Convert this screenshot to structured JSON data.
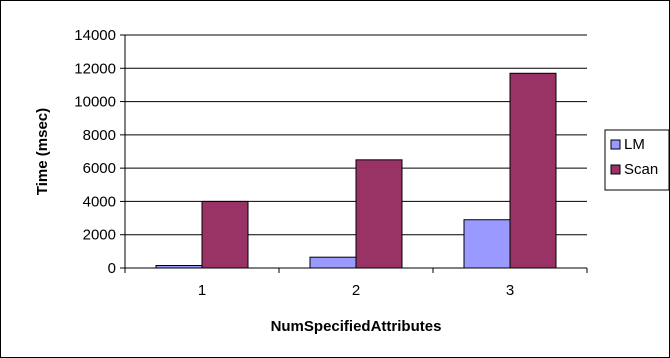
{
  "chart_data": {
    "type": "bar",
    "categories": [
      "1",
      "2",
      "3"
    ],
    "series": [
      {
        "name": "LM",
        "values": [
          150,
          650,
          2900
        ],
        "color": "#9999ff"
      },
      {
        "name": "Scan",
        "values": [
          4000,
          6500,
          11700
        ],
        "color": "#993366"
      }
    ],
    "xlabel": "NumSpecifiedAttributes",
    "ylabel": "Time (msec)",
    "ylim": [
      0,
      14000
    ],
    "yticks": [
      0,
      2000,
      4000,
      6000,
      8000,
      10000,
      12000,
      14000
    ],
    "grid": true,
    "legend": "right"
  }
}
